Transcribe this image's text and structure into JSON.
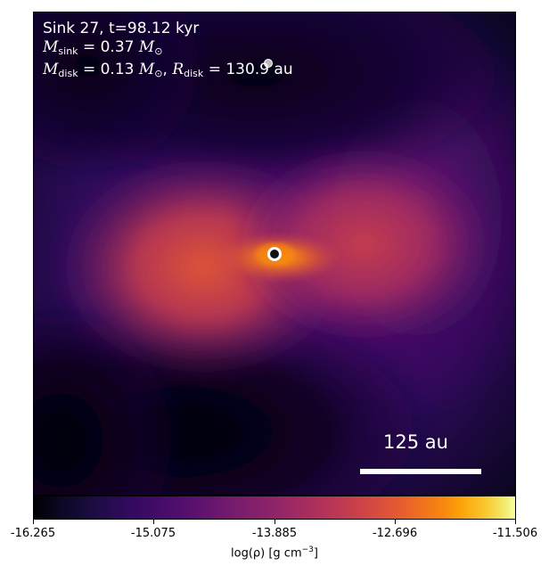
{
  "title_line1": "Sink 27, t=98.12 kyr",
  "mass_sink": {
    "symbol": "M",
    "subscript": "sink",
    "value": "= 0.37",
    "unit": "M",
    "unit_sub": "⊙"
  },
  "disk_params": {
    "mass_symbol": "M",
    "mass_subscript": "disk",
    "mass_value": "= 0.13",
    "mass_unit": "M",
    "mass_unit_sub": "⊙",
    "radius_symbol": "R",
    "radius_subscript": "disk",
    "radius_value": "= 130.9",
    "radius_unit": "au"
  },
  "scale_bar": {
    "label": "125 au"
  },
  "colorbar": {
    "colormap": "inferno",
    "ticks": [
      "-16.265",
      "-15.075",
      "-13.885",
      "-12.696",
      "-11.506"
    ],
    "label_prefix": "log(ρ) [g cm",
    "label_exp": "−3",
    "label_suffix": "]"
  },
  "colors": {
    "sink_marker_fill": "#111111",
    "sink_marker_ring": "#ffffff",
    "secondary_sink": "#bbbbbb"
  }
}
